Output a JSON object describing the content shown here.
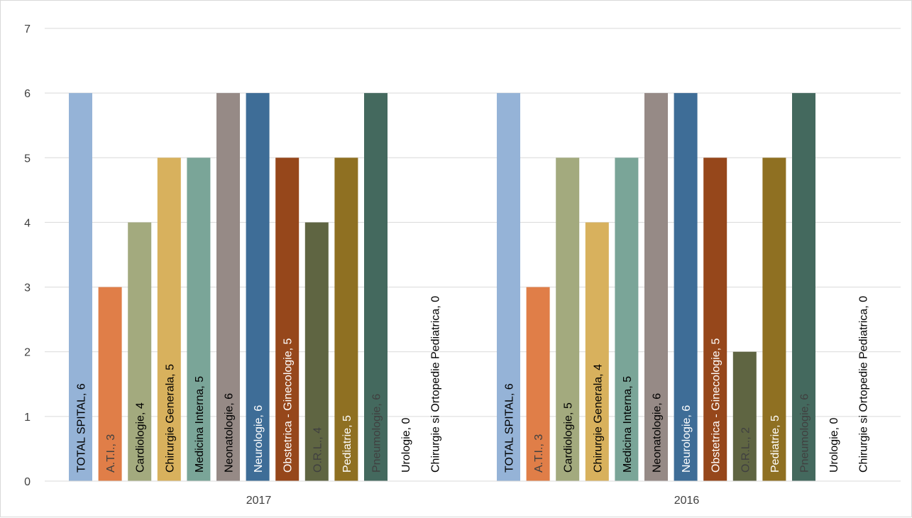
{
  "chart_data": {
    "type": "bar",
    "title": "",
    "xlabel": "",
    "ylabel": "",
    "ylim": [
      0,
      7
    ],
    "yticks": [
      "0",
      "1",
      "2",
      "3",
      "4",
      "5",
      "6",
      "7"
    ],
    "grid": true,
    "legend": "none",
    "categories": [
      "2017",
      "2016"
    ],
    "series": [
      {
        "name": "TOTAL SPITAL",
        "color": "#95b3d7",
        "values": [
          6,
          6
        ]
      },
      {
        "name": "A.T.I.",
        "color": "#e07e48",
        "values": [
          3,
          3
        ]
      },
      {
        "name": "Cardiologie",
        "color": "#a3aa7e",
        "values": [
          4,
          5
        ]
      },
      {
        "name": "Chirurgie Generala",
        "color": "#d8b15d",
        "values": [
          5,
          4
        ]
      },
      {
        "name": "Medicina Interna",
        "color": "#7aa598",
        "values": [
          5,
          5
        ]
      },
      {
        "name": "Neonatologie",
        "color": "#968a86",
        "values": [
          6,
          6
        ]
      },
      {
        "name": "Neurologie",
        "color": "#3e6d97",
        "values": [
          6,
          6
        ]
      },
      {
        "name": "Obstetrica - Ginecologie",
        "color": "#96471b",
        "values": [
          5,
          5
        ]
      },
      {
        "name": "O.R.L.",
        "color": "#5f6542",
        "values": [
          4,
          2
        ]
      },
      {
        "name": "Pediatrie",
        "color": "#8f7022",
        "values": [
          5,
          5
        ]
      },
      {
        "name": "Pneumologie",
        "color": "#44695e",
        "values": [
          6,
          6
        ]
      },
      {
        "name": "Urologie",
        "color": "#1f3a5c",
        "values": [
          0,
          0
        ]
      },
      {
        "name": "Chirurgie si Ortopedie Pediatrica",
        "color": "#8c3e2a",
        "values": [
          0,
          0
        ]
      }
    ],
    "data_labels": [
      [
        "TOTAL SPITAL, 6",
        "A.T.I., 3",
        "Cardiologie, 4",
        "Chirurgie Generala, 5",
        "Medicina Interna, 5",
        "Neonatologie, 6",
        "Neurologie, 6",
        "Obstetrica - Ginecologie, 5",
        "O.R.L., 4",
        "Pediatrie, 5",
        "Pneumologie, 6",
        "Urologie, 0",
        "Chirurgie si Ortopedie Pediatrica, 0"
      ],
      [
        "TOTAL SPITAL, 6",
        "A.T.I., 3",
        "Cardiologie, 5",
        "Chirurgie Generala, 4",
        "Medicina Interna, 5",
        "Neonatologie, 6",
        "Neurologie, 6",
        "Obstetrica - Ginecologie, 5",
        "O.R.L., 2",
        "Pediatrie, 5",
        "Pneumologie, 6",
        "Urologie, 0",
        "Chirurgie si Ortopedie Pediatrica, 0"
      ]
    ],
    "label_colors": [
      "#000000",
      "#404040",
      "#000000",
      "#000000",
      "#000000",
      "#000000",
      "#ffffff",
      "#ffffff",
      "#404040",
      "#ffffff",
      "#404040",
      "#000000",
      "#000000"
    ],
    "colors": {
      "grid": "#d9d9d9",
      "axis": "#d9d9d9",
      "text": "#404040"
    }
  }
}
